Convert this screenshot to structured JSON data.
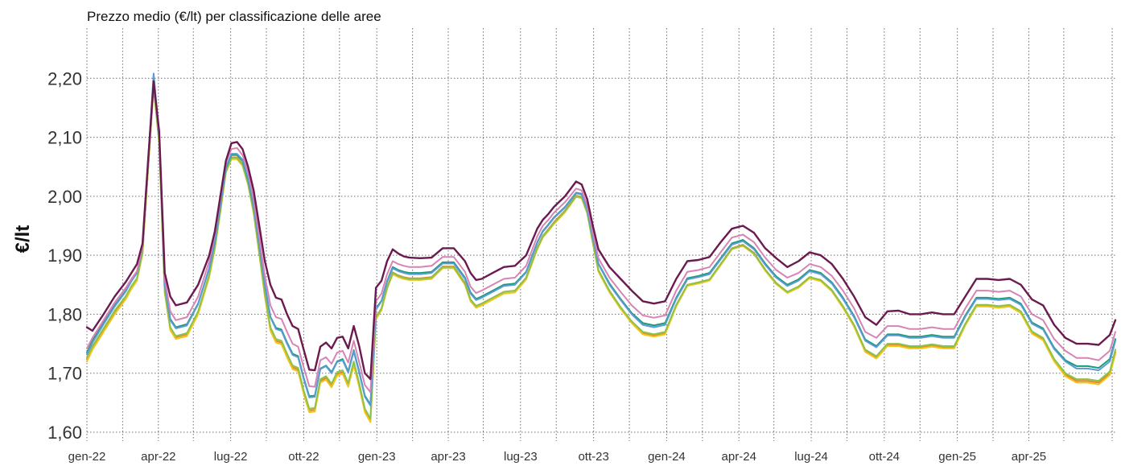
{
  "chart_data": {
    "type": "line",
    "title": "Prezzo medio (€/lt) per classificazione delle aree",
    "ylabel": "€/lt",
    "xlabel": "",
    "ylim": [
      1.585,
      2.285
    ],
    "xlim": [
      "2022-01-01",
      "2025-07-21"
    ],
    "grid": true,
    "legend": "none",
    "ytick_values": [
      1.6,
      1.7,
      1.8,
      1.9,
      2.0,
      2.1,
      2.2
    ],
    "ytick_labels": [
      "1,60",
      "1,70",
      "1,80",
      "1,90",
      "2,00",
      "2,10",
      "2,20"
    ],
    "xticks": [
      {
        "date": "2022-01-01",
        "label": "gen-22"
      },
      {
        "date": "2022-04-01",
        "label": "apr-22"
      },
      {
        "date": "2022-07-01",
        "label": "lug-22"
      },
      {
        "date": "2022-10-01",
        "label": "ott-22"
      },
      {
        "date": "2023-01-01",
        "label": "gen-23"
      },
      {
        "date": "2023-04-01",
        "label": "apr-23"
      },
      {
        "date": "2023-07-01",
        "label": "lug-23"
      },
      {
        "date": "2023-10-01",
        "label": "ott-23"
      },
      {
        "date": "2024-01-01",
        "label": "gen-24"
      },
      {
        "date": "2024-04-01",
        "label": "apr-24"
      },
      {
        "date": "2024-07-01",
        "label": "lug-24"
      },
      {
        "date": "2024-10-01",
        "label": "ott-24"
      },
      {
        "date": "2025-01-01",
        "label": "gen-25"
      },
      {
        "date": "2025-04-01",
        "label": "apr-25"
      }
    ],
    "minor_grid_dates": [
      "2022-02-15",
      "2022-05-15",
      "2022-08-15",
      "2022-11-15",
      "2023-02-15",
      "2023-05-15",
      "2023-08-15",
      "2023-11-15",
      "2024-02-15",
      "2024-05-15",
      "2024-08-15",
      "2024-11-15",
      "2025-02-15",
      "2025-05-15",
      "2025-07-15"
    ],
    "x": [
      "2022-01-01",
      "2022-01-08",
      "2022-01-22",
      "2022-02-05",
      "2022-02-19",
      "2022-02-26",
      "2022-03-05",
      "2022-03-12",
      "2022-03-19",
      "2022-03-26",
      "2022-04-02",
      "2022-04-09",
      "2022-04-16",
      "2022-04-23",
      "2022-05-07",
      "2022-05-21",
      "2022-06-04",
      "2022-06-11",
      "2022-06-18",
      "2022-06-25",
      "2022-07-02",
      "2022-07-09",
      "2022-07-16",
      "2022-07-23",
      "2022-07-30",
      "2022-08-06",
      "2022-08-13",
      "2022-08-20",
      "2022-08-27",
      "2022-09-03",
      "2022-09-10",
      "2022-09-17",
      "2022-09-24",
      "2022-10-01",
      "2022-10-08",
      "2022-10-15",
      "2022-10-22",
      "2022-10-29",
      "2022-11-05",
      "2022-11-12",
      "2022-11-19",
      "2022-11-26",
      "2022-12-03",
      "2022-12-10",
      "2022-12-17",
      "2022-12-24",
      "2022-12-31",
      "2023-01-07",
      "2023-01-14",
      "2023-01-21",
      "2023-01-28",
      "2023-02-04",
      "2023-02-11",
      "2023-02-25",
      "2023-03-11",
      "2023-03-25",
      "2023-04-08",
      "2023-04-22",
      "2023-04-29",
      "2023-05-06",
      "2023-05-13",
      "2023-05-27",
      "2023-06-10",
      "2023-06-24",
      "2023-07-08",
      "2023-07-22",
      "2023-07-29",
      "2023-08-05",
      "2023-08-12",
      "2023-08-26",
      "2023-09-09",
      "2023-09-16",
      "2023-09-23",
      "2023-09-30",
      "2023-10-07",
      "2023-10-21",
      "2023-11-04",
      "2023-11-18",
      "2023-12-02",
      "2023-12-16",
      "2023-12-30",
      "2024-01-13",
      "2024-01-27",
      "2024-02-10",
      "2024-02-24",
      "2024-03-09",
      "2024-03-23",
      "2024-04-06",
      "2024-04-20",
      "2024-05-04",
      "2024-05-18",
      "2024-06-01",
      "2024-06-15",
      "2024-06-29",
      "2024-07-13",
      "2024-07-27",
      "2024-08-10",
      "2024-08-24",
      "2024-09-07",
      "2024-09-21",
      "2024-10-05",
      "2024-10-19",
      "2024-11-02",
      "2024-11-16",
      "2024-11-30",
      "2024-12-14",
      "2024-12-28",
      "2025-01-11",
      "2025-01-25",
      "2025-02-08",
      "2025-02-22",
      "2025-03-08",
      "2025-03-22",
      "2025-04-05",
      "2025-04-19",
      "2025-05-03",
      "2025-05-17",
      "2025-05-31",
      "2025-06-14",
      "2025-06-28",
      "2025-07-12",
      "2025-07-19"
    ],
    "series": [
      {
        "color": "#6b1a4f",
        "values": [
          1.778,
          1.772,
          1.8,
          1.83,
          1.855,
          1.87,
          1.885,
          1.92,
          2.06,
          2.195,
          2.11,
          1.87,
          1.83,
          1.815,
          1.82,
          1.85,
          1.9,
          1.94,
          2.0,
          2.06,
          2.09,
          2.092,
          2.08,
          2.05,
          2.01,
          1.95,
          1.89,
          1.85,
          1.828,
          1.825,
          1.8,
          1.78,
          1.775,
          1.74,
          1.706,
          1.705,
          1.745,
          1.752,
          1.742,
          1.76,
          1.762,
          1.742,
          1.78,
          1.745,
          1.7,
          1.69,
          1.845,
          1.857,
          1.89,
          1.91,
          1.903,
          1.898,
          1.896,
          1.895,
          1.896,
          1.912,
          1.912,
          1.89,
          1.87,
          1.858,
          1.86,
          1.87,
          1.88,
          1.882,
          1.9,
          1.945,
          1.96,
          1.97,
          1.982,
          2.0,
          2.025,
          2.02,
          1.995,
          1.95,
          1.91,
          1.88,
          1.86,
          1.84,
          1.822,
          1.818,
          1.822,
          1.86,
          1.89,
          1.892,
          1.897,
          1.922,
          1.945,
          1.95,
          1.938,
          1.912,
          1.895,
          1.88,
          1.89,
          1.905,
          1.9,
          1.885,
          1.86,
          1.83,
          1.795,
          1.782,
          1.805,
          1.806,
          1.8,
          1.8,
          1.803,
          1.8,
          1.8,
          1.83,
          1.86,
          1.86,
          1.858,
          1.86,
          1.85,
          1.825,
          1.815,
          1.782,
          1.76,
          1.75,
          1.75,
          1.748,
          1.765,
          1.79
        ]
      },
      {
        "color": "#d783b5",
        "values": [
          1.742,
          1.76,
          1.79,
          1.82,
          1.845,
          1.86,
          1.873,
          1.915,
          2.058,
          2.195,
          2.105,
          1.86,
          1.805,
          1.79,
          1.795,
          1.83,
          1.89,
          1.935,
          1.995,
          2.058,
          2.08,
          2.082,
          2.07,
          2.04,
          1.995,
          1.93,
          1.865,
          1.815,
          1.795,
          1.792,
          1.77,
          1.75,
          1.745,
          1.71,
          1.678,
          1.677,
          1.722,
          1.727,
          1.716,
          1.735,
          1.738,
          1.718,
          1.755,
          1.718,
          1.68,
          1.668,
          1.822,
          1.835,
          1.868,
          1.89,
          1.885,
          1.882,
          1.88,
          1.88,
          1.882,
          1.897,
          1.897,
          1.872,
          1.847,
          1.836,
          1.84,
          1.85,
          1.86,
          1.862,
          1.882,
          1.932,
          1.95,
          1.96,
          1.972,
          1.99,
          2.013,
          2.01,
          1.985,
          1.938,
          1.895,
          1.862,
          1.838,
          1.815,
          1.798,
          1.794,
          1.798,
          1.84,
          1.872,
          1.875,
          1.88,
          1.905,
          1.93,
          1.935,
          1.922,
          1.896,
          1.875,
          1.862,
          1.87,
          1.885,
          1.88,
          1.865,
          1.84,
          1.81,
          1.77,
          1.76,
          1.78,
          1.78,
          1.775,
          1.775,
          1.778,
          1.775,
          1.775,
          1.81,
          1.84,
          1.84,
          1.838,
          1.84,
          1.83,
          1.8,
          1.79,
          1.758,
          1.738,
          1.726,
          1.726,
          1.722,
          1.738,
          1.77
        ]
      },
      {
        "color": "#5b9bd5",
        "values": [
          1.732,
          1.752,
          1.783,
          1.813,
          1.839,
          1.856,
          1.87,
          1.915,
          2.06,
          2.208,
          2.105,
          1.85,
          1.79,
          1.776,
          1.781,
          1.817,
          1.878,
          1.923,
          1.985,
          2.05,
          2.072,
          2.072,
          2.062,
          2.03,
          1.985,
          1.918,
          1.85,
          1.795,
          1.775,
          1.772,
          1.75,
          1.731,
          1.727,
          1.69,
          1.659,
          1.66,
          1.707,
          1.712,
          1.7,
          1.719,
          1.722,
          1.701,
          1.737,
          1.7,
          1.66,
          1.645,
          1.808,
          1.822,
          1.855,
          1.878,
          1.873,
          1.87,
          1.868,
          1.868,
          1.87,
          1.886,
          1.886,
          1.86,
          1.835,
          1.824,
          1.828,
          1.838,
          1.848,
          1.85,
          1.871,
          1.921,
          1.94,
          1.951,
          1.963,
          1.981,
          2.005,
          2.003,
          1.978,
          1.93,
          1.885,
          1.85,
          1.824,
          1.8,
          1.782,
          1.778,
          1.782,
          1.826,
          1.859,
          1.863,
          1.868,
          1.893,
          1.918,
          1.924,
          1.91,
          1.884,
          1.862,
          1.848,
          1.857,
          1.873,
          1.868,
          1.852,
          1.826,
          1.795,
          1.755,
          1.744,
          1.764,
          1.764,
          1.76,
          1.76,
          1.763,
          1.76,
          1.76,
          1.796,
          1.826,
          1.826,
          1.824,
          1.826,
          1.816,
          1.784,
          1.774,
          1.741,
          1.72,
          1.708,
          1.708,
          1.705,
          1.72,
          1.755
        ]
      },
      {
        "color": "#1a9a78",
        "values": [
          1.735,
          1.755,
          1.785,
          1.815,
          1.84,
          1.857,
          1.87,
          1.913,
          2.055,
          2.195,
          2.1,
          1.85,
          1.792,
          1.778,
          1.783,
          1.818,
          1.878,
          1.922,
          1.983,
          2.048,
          2.07,
          2.07,
          2.06,
          2.028,
          1.983,
          1.917,
          1.85,
          1.796,
          1.777,
          1.774,
          1.752,
          1.733,
          1.729,
          1.692,
          1.661,
          1.662,
          1.708,
          1.713,
          1.702,
          1.72,
          1.724,
          1.703,
          1.739,
          1.702,
          1.662,
          1.647,
          1.81,
          1.823,
          1.856,
          1.88,
          1.875,
          1.872,
          1.87,
          1.87,
          1.872,
          1.888,
          1.888,
          1.862,
          1.837,
          1.826,
          1.83,
          1.84,
          1.85,
          1.852,
          1.872,
          1.922,
          1.941,
          1.952,
          1.964,
          1.982,
          2.006,
          2.004,
          1.979,
          1.931,
          1.886,
          1.852,
          1.826,
          1.802,
          1.785,
          1.781,
          1.785,
          1.828,
          1.861,
          1.865,
          1.87,
          1.895,
          1.92,
          1.926,
          1.912,
          1.886,
          1.864,
          1.85,
          1.859,
          1.875,
          1.87,
          1.854,
          1.828,
          1.797,
          1.757,
          1.746,
          1.766,
          1.766,
          1.762,
          1.762,
          1.765,
          1.762,
          1.762,
          1.798,
          1.828,
          1.828,
          1.826,
          1.828,
          1.818,
          1.786,
          1.776,
          1.743,
          1.722,
          1.712,
          1.712,
          1.709,
          1.724,
          1.758
        ]
      },
      {
        "color": "#8bc34a",
        "values": [
          1.727,
          1.746,
          1.776,
          1.806,
          1.831,
          1.848,
          1.861,
          1.905,
          2.048,
          2.188,
          2.093,
          1.84,
          1.778,
          1.763,
          1.768,
          1.805,
          1.867,
          1.913,
          1.976,
          2.042,
          2.065,
          2.065,
          2.054,
          2.021,
          1.974,
          1.905,
          1.835,
          1.778,
          1.758,
          1.755,
          1.733,
          1.713,
          1.709,
          1.671,
          1.64,
          1.641,
          1.69,
          1.695,
          1.682,
          1.702,
          1.705,
          1.683,
          1.72,
          1.682,
          1.64,
          1.623,
          1.795,
          1.81,
          1.845,
          1.87,
          1.865,
          1.862,
          1.86,
          1.86,
          1.862,
          1.88,
          1.88,
          1.852,
          1.825,
          1.814,
          1.818,
          1.828,
          1.838,
          1.84,
          1.862,
          1.912,
          1.932,
          1.943,
          1.955,
          1.975,
          2.0,
          1.998,
          1.972,
          1.922,
          1.875,
          1.84,
          1.812,
          1.788,
          1.77,
          1.766,
          1.77,
          1.816,
          1.85,
          1.854,
          1.859,
          1.885,
          1.911,
          1.917,
          1.903,
          1.876,
          1.853,
          1.838,
          1.847,
          1.863,
          1.858,
          1.841,
          1.814,
          1.782,
          1.74,
          1.729,
          1.75,
          1.75,
          1.746,
          1.746,
          1.749,
          1.746,
          1.746,
          1.784,
          1.816,
          1.816,
          1.814,
          1.816,
          1.805,
          1.771,
          1.76,
          1.724,
          1.7,
          1.69,
          1.69,
          1.687,
          1.703,
          1.74
        ]
      },
      {
        "color": "#f0c419",
        "values": [
          1.72,
          1.74,
          1.77,
          1.8,
          1.826,
          1.843,
          1.857,
          1.902,
          2.046,
          2.19,
          2.092,
          1.836,
          1.773,
          1.758,
          1.763,
          1.8,
          1.863,
          1.91,
          1.973,
          2.04,
          2.063,
          2.063,
          2.052,
          2.019,
          1.971,
          1.901,
          1.83,
          1.772,
          1.752,
          1.749,
          1.727,
          1.707,
          1.703,
          1.665,
          1.634,
          1.635,
          1.684,
          1.689,
          1.676,
          1.696,
          1.699,
          1.677,
          1.714,
          1.676,
          1.634,
          1.617,
          1.792,
          1.807,
          1.843,
          1.868,
          1.863,
          1.86,
          1.858,
          1.858,
          1.86,
          1.878,
          1.878,
          1.85,
          1.822,
          1.811,
          1.815,
          1.825,
          1.835,
          1.837,
          1.859,
          1.91,
          1.93,
          1.941,
          1.953,
          1.973,
          1.999,
          1.997,
          1.971,
          1.92,
          1.872,
          1.837,
          1.809,
          1.785,
          1.766,
          1.762,
          1.766,
          1.813,
          1.848,
          1.852,
          1.857,
          1.883,
          1.91,
          1.916,
          1.902,
          1.874,
          1.851,
          1.836,
          1.845,
          1.861,
          1.856,
          1.839,
          1.811,
          1.779,
          1.736,
          1.725,
          1.746,
          1.746,
          1.742,
          1.742,
          1.745,
          1.742,
          1.742,
          1.781,
          1.813,
          1.813,
          1.811,
          1.813,
          1.802,
          1.767,
          1.756,
          1.72,
          1.695,
          1.684,
          1.684,
          1.681,
          1.697,
          1.733
        ]
      },
      {
        "color": "#e8842c",
        "values": [
          1.724,
          1.743,
          1.773,
          1.803,
          1.829,
          1.846,
          1.859,
          1.903,
          2.045,
          2.185,
          2.09,
          1.838,
          1.776,
          1.761,
          1.766,
          1.803,
          1.866,
          1.912,
          1.975,
          2.042,
          2.066,
          2.066,
          2.055,
          2.022,
          1.974,
          1.904,
          1.833,
          1.775,
          1.755,
          1.752,
          1.73,
          1.71,
          1.706,
          1.668,
          1.637,
          1.638,
          1.687,
          1.692,
          1.679,
          1.699,
          1.702,
          1.68,
          1.717,
          1.679,
          1.637,
          1.62,
          1.795,
          1.81,
          1.846,
          1.871,
          1.866,
          1.863,
          1.861,
          1.861,
          1.863,
          1.881,
          1.881,
          1.853,
          1.825,
          1.814,
          1.818,
          1.828,
          1.838,
          1.84,
          1.862,
          1.913,
          1.933,
          1.944,
          1.956,
          1.976,
          2.001,
          1.999,
          1.973,
          1.922,
          1.874,
          1.839,
          1.811,
          1.787,
          1.768,
          1.764,
          1.768,
          1.815,
          1.85,
          1.854,
          1.859,
          1.885,
          1.912,
          1.918,
          1.904,
          1.876,
          1.853,
          1.838,
          1.847,
          1.863,
          1.858,
          1.841,
          1.813,
          1.781,
          1.738,
          1.727,
          1.748,
          1.748,
          1.744,
          1.744,
          1.747,
          1.744,
          1.744,
          1.783,
          1.815,
          1.815,
          1.813,
          1.815,
          1.804,
          1.769,
          1.758,
          1.722,
          1.698,
          1.687,
          1.687,
          1.684,
          1.7,
          1.736
        ]
      }
    ]
  }
}
